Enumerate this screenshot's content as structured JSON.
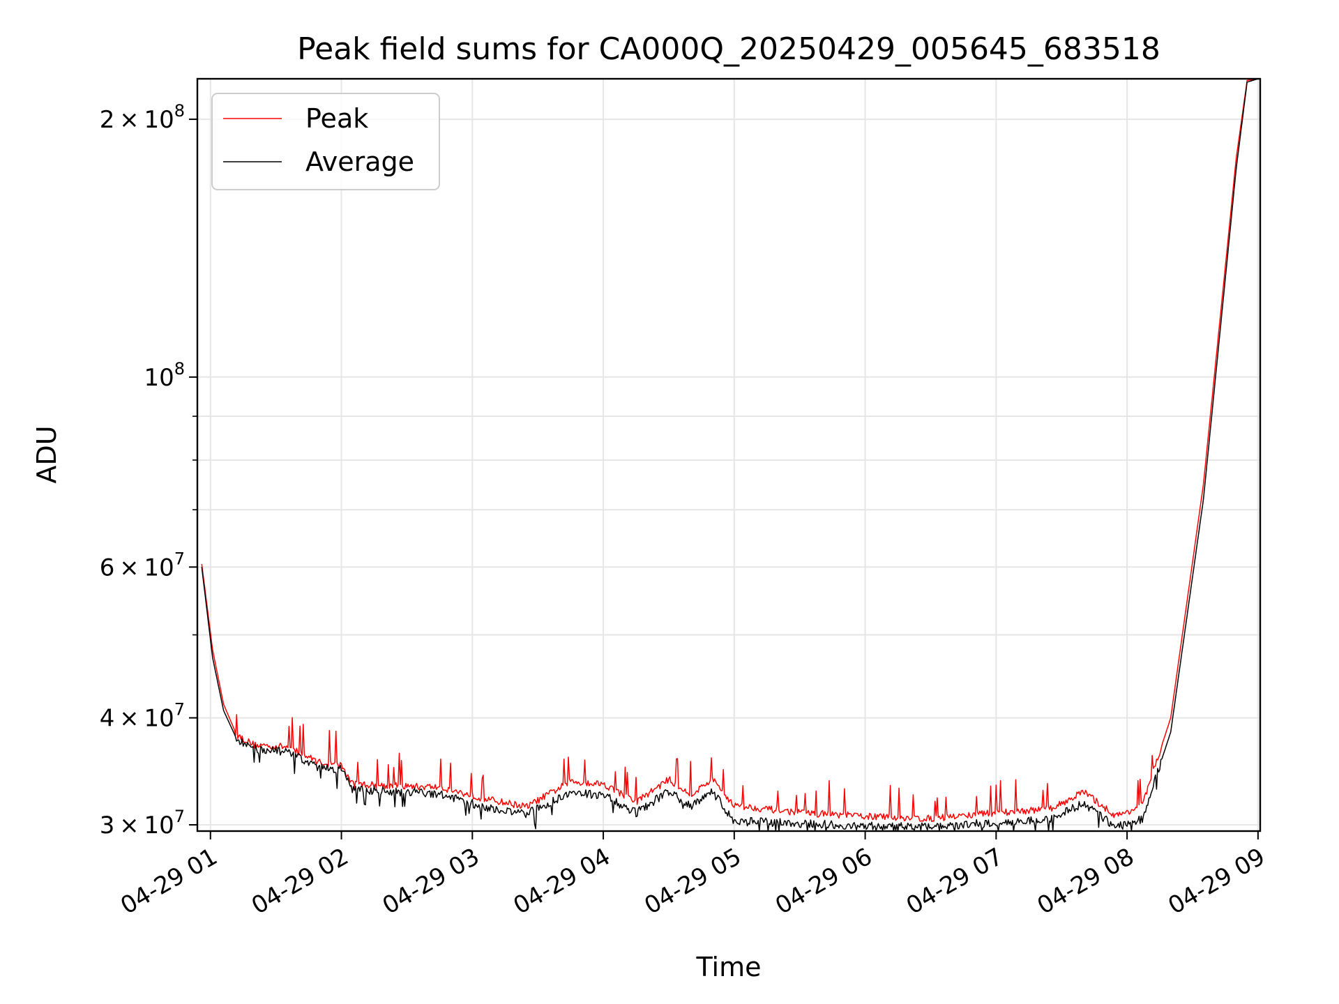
{
  "chart_data": {
    "type": "line",
    "title": "Peak field sums for CA000Q_20250429_005645_683518",
    "xlabel": "Time",
    "ylabel": "ADU",
    "x_range": [
      "2025-04-29T00:56",
      "2025-04-29T09:00"
    ],
    "ylim": [
      29500000,
      223000000
    ],
    "y_scale": "log",
    "grid": true,
    "legend_position": "top-left",
    "x_ticks": [
      {
        "t": "2025-04-29T01:00",
        "label": "04-29 01"
      },
      {
        "t": "2025-04-29T02:00",
        "label": "04-29 02"
      },
      {
        "t": "2025-04-29T03:00",
        "label": "04-29 03"
      },
      {
        "t": "2025-04-29T04:00",
        "label": "04-29 04"
      },
      {
        "t": "2025-04-29T05:00",
        "label": "04-29 05"
      },
      {
        "t": "2025-04-29T06:00",
        "label": "04-29 06"
      },
      {
        "t": "2025-04-29T07:00",
        "label": "04-29 07"
      },
      {
        "t": "2025-04-29T08:00",
        "label": "04-29 08"
      },
      {
        "t": "2025-04-29T09:00",
        "label": "04-29 09"
      }
    ],
    "y_major_ticks": [
      {
        "v": 30000000,
        "mant": "3",
        "exp": "7"
      },
      {
        "v": 40000000,
        "mant": "4",
        "exp": "7"
      },
      {
        "v": 60000000,
        "mant": "6",
        "exp": "7"
      },
      {
        "v": 100000000,
        "mant": "",
        "exp": "8"
      },
      {
        "v": 200000000,
        "mant": "2",
        "exp": "8"
      }
    ],
    "y_minor_ticks": [
      50000000,
      70000000,
      80000000,
      90000000
    ],
    "series": [
      {
        "name": "Peak",
        "color": "#ff0000",
        "points": [
          [
            "2025-04-29T00:56",
            60500000
          ],
          [
            "2025-04-29T01:01",
            48000000
          ],
          [
            "2025-04-29T01:06",
            41500000
          ],
          [
            "2025-04-29T01:12",
            38200000
          ],
          [
            "2025-04-29T01:20",
            37200000
          ],
          [
            "2025-04-29T01:35",
            37000000
          ],
          [
            "2025-04-29T01:50",
            35500000
          ],
          [
            "2025-04-29T02:00",
            35200000
          ],
          [
            "2025-04-29T02:05",
            33500000
          ],
          [
            "2025-04-29T02:25",
            33300000
          ],
          [
            "2025-04-29T02:45",
            33200000
          ],
          [
            "2025-04-29T03:05",
            32200000
          ],
          [
            "2025-04-29T03:25",
            31500000
          ],
          [
            "2025-04-29T03:45",
            33700000
          ],
          [
            "2025-04-29T04:00",
            33500000
          ],
          [
            "2025-04-29T04:15",
            31900000
          ],
          [
            "2025-04-29T04:30",
            33900000
          ],
          [
            "2025-04-29T04:40",
            32500000
          ],
          [
            "2025-04-29T04:50",
            33900000
          ],
          [
            "2025-04-29T05:00",
            31600000
          ],
          [
            "2025-04-29T05:30",
            31000000
          ],
          [
            "2025-04-29T06:00",
            30700000
          ],
          [
            "2025-04-29T06:30",
            30500000
          ],
          [
            "2025-04-29T07:00",
            31000000
          ],
          [
            "2025-04-29T07:25",
            31300000
          ],
          [
            "2025-04-29T07:40",
            32800000
          ],
          [
            "2025-04-29T07:55",
            30700000
          ],
          [
            "2025-04-29T08:07",
            31600000
          ],
          [
            "2025-04-29T08:20",
            40000000
          ],
          [
            "2025-04-29T08:35",
            75000000
          ],
          [
            "2025-04-29T08:50",
            180000000
          ],
          [
            "2025-04-29T08:55",
            222000000
          ],
          [
            "2025-04-29T09:00",
            223000000
          ]
        ]
      },
      {
        "name": "Average",
        "color": "#000000",
        "points": [
          [
            "2025-04-29T00:56",
            60000000
          ],
          [
            "2025-04-29T01:01",
            47000000
          ],
          [
            "2025-04-29T01:06",
            40800000
          ],
          [
            "2025-04-29T01:12",
            37800000
          ],
          [
            "2025-04-29T01:20",
            36800000
          ],
          [
            "2025-04-29T01:35",
            36500000
          ],
          [
            "2025-04-29T01:50",
            35000000
          ],
          [
            "2025-04-29T02:00",
            34800000
          ],
          [
            "2025-04-29T02:05",
            33000000
          ],
          [
            "2025-04-29T02:25",
            32800000
          ],
          [
            "2025-04-29T02:45",
            32600000
          ],
          [
            "2025-04-29T03:05",
            31500000
          ],
          [
            "2025-04-29T03:25",
            30900000
          ],
          [
            "2025-04-29T03:45",
            32700000
          ],
          [
            "2025-04-29T04:00",
            32500000
          ],
          [
            "2025-04-29T04:15",
            31000000
          ],
          [
            "2025-04-29T04:30",
            32800000
          ],
          [
            "2025-04-29T04:40",
            31500000
          ],
          [
            "2025-04-29T04:50",
            32800000
          ],
          [
            "2025-04-29T05:00",
            30300000
          ],
          [
            "2025-04-29T05:30",
            30100000
          ],
          [
            "2025-04-29T06:00",
            29900000
          ],
          [
            "2025-04-29T06:30",
            29800000
          ],
          [
            "2025-04-29T07:00",
            30200000
          ],
          [
            "2025-04-29T07:25",
            30500000
          ],
          [
            "2025-04-29T07:40",
            31800000
          ],
          [
            "2025-04-29T07:55",
            29800000
          ],
          [
            "2025-04-29T08:07",
            30500000
          ],
          [
            "2025-04-29T08:20",
            38500000
          ],
          [
            "2025-04-29T08:35",
            72000000
          ],
          [
            "2025-04-29T08:50",
            175000000
          ],
          [
            "2025-04-29T08:55",
            221000000
          ],
          [
            "2025-04-29T09:00",
            223000000
          ]
        ]
      }
    ]
  }
}
